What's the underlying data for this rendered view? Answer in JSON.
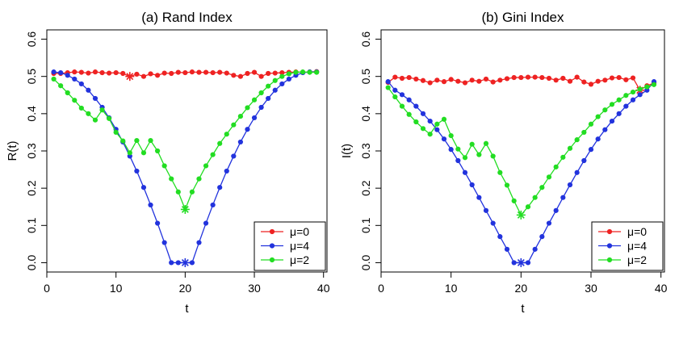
{
  "chart_data": [
    {
      "type": "line",
      "title": "(a) Rand Index",
      "xlabel": "t",
      "ylabel": "R(t)",
      "xlim": [
        0,
        40
      ],
      "ylim": [
        0.0,
        0.6
      ],
      "xticks": [
        "0",
        "10",
        "20",
        "30",
        "40"
      ],
      "yticks": [
        "0.0",
        "0.1",
        "0.2",
        "0.3",
        "0.4",
        "0.5",
        "0.6"
      ],
      "legend_position": "bottom-right",
      "x": [
        1,
        2,
        3,
        4,
        5,
        6,
        7,
        8,
        9,
        10,
        11,
        12,
        13,
        14,
        15,
        16,
        17,
        18,
        19,
        20,
        21,
        22,
        23,
        24,
        25,
        26,
        27,
        28,
        29,
        30,
        31,
        32,
        33,
        34,
        35,
        36,
        37,
        38,
        39
      ],
      "series": [
        {
          "name": "μ=0",
          "color": "#ee2222",
          "values": [
            0.508,
            0.508,
            0.51,
            0.512,
            0.511,
            0.509,
            0.512,
            0.51,
            0.509,
            0.51,
            0.508,
            0.5,
            0.506,
            0.5,
            0.507,
            0.503,
            0.509,
            0.508,
            0.511,
            0.51,
            0.512,
            0.511,
            0.511,
            0.51,
            0.511,
            0.509,
            0.503,
            0.5,
            0.508,
            0.511,
            0.5,
            0.508,
            0.509,
            0.51,
            0.511,
            0.512,
            0.511,
            0.512,
            0.513
          ],
          "star_index": 11
        },
        {
          "name": "μ=4",
          "color": "#2233dd",
          "values": [
            0.512,
            0.51,
            0.503,
            0.493,
            0.48,
            0.463,
            0.441,
            0.417,
            0.389,
            0.358,
            0.324,
            0.286,
            0.246,
            0.202,
            0.155,
            0.106,
            0.054,
            0.0,
            0.0,
            0.0,
            0.0,
            0.054,
            0.106,
            0.155,
            0.202,
            0.246,
            0.286,
            0.324,
            0.358,
            0.389,
            0.417,
            0.441,
            0.463,
            0.48,
            0.493,
            0.503,
            0.51,
            0.512,
            0.512
          ],
          "star_index": 19
        },
        {
          "name": "μ=2",
          "color": "#22dd22",
          "values": [
            0.493,
            0.475,
            0.456,
            0.436,
            0.415,
            0.4,
            0.383,
            0.41,
            0.387,
            0.35,
            0.327,
            0.295,
            0.328,
            0.295,
            0.328,
            0.3,
            0.26,
            0.225,
            0.19,
            0.143,
            0.19,
            0.225,
            0.26,
            0.29,
            0.32,
            0.345,
            0.37,
            0.393,
            0.416,
            0.437,
            0.456,
            0.474,
            0.489,
            0.5,
            0.507,
            0.511,
            0.512,
            0.511,
            0.511
          ],
          "star_index": 19
        }
      ]
    },
    {
      "type": "line",
      "title": "(b) Gini Index",
      "xlabel": "t",
      "ylabel": "I(t)",
      "xlim": [
        0,
        40
      ],
      "ylim": [
        0.0,
        0.6
      ],
      "xticks": [
        "0",
        "10",
        "20",
        "30",
        "40"
      ],
      "yticks": [
        "0.0",
        "0.1",
        "0.2",
        "0.3",
        "0.4",
        "0.5",
        "0.6"
      ],
      "legend_position": "bottom-right",
      "x": [
        1,
        2,
        3,
        4,
        5,
        6,
        7,
        8,
        9,
        10,
        11,
        12,
        13,
        14,
        15,
        16,
        17,
        18,
        19,
        20,
        21,
        22,
        23,
        24,
        25,
        26,
        27,
        28,
        29,
        30,
        31,
        32,
        33,
        34,
        35,
        36,
        37,
        38,
        39
      ],
      "series": [
        {
          "name": "μ=0",
          "color": "#ee2222",
          "values": [
            0.484,
            0.498,
            0.495,
            0.497,
            0.493,
            0.489,
            0.483,
            0.49,
            0.486,
            0.492,
            0.487,
            0.483,
            0.49,
            0.487,
            0.493,
            0.485,
            0.49,
            0.494,
            0.497,
            0.497,
            0.498,
            0.498,
            0.497,
            0.495,
            0.49,
            0.495,
            0.487,
            0.498,
            0.485,
            0.479,
            0.487,
            0.49,
            0.496,
            0.497,
            0.491,
            0.496,
            0.463,
            0.475,
            0.482
          ],
          "star_index": 36
        },
        {
          "name": "μ=4",
          "color": "#2233dd",
          "values": [
            0.486,
            0.463,
            0.451,
            0.437,
            0.42,
            0.4,
            0.38,
            0.357,
            0.332,
            0.304,
            0.274,
            0.242,
            0.209,
            0.175,
            0.14,
            0.106,
            0.07,
            0.036,
            0.0,
            0.0,
            0.0,
            0.036,
            0.07,
            0.106,
            0.14,
            0.175,
            0.209,
            0.242,
            0.274,
            0.304,
            0.332,
            0.357,
            0.38,
            0.4,
            0.42,
            0.437,
            0.451,
            0.463,
            0.486
          ],
          "star_index": 19
        },
        {
          "name": "μ=2",
          "color": "#22dd22",
          "values": [
            0.47,
            0.445,
            0.42,
            0.398,
            0.378,
            0.36,
            0.345,
            0.372,
            0.385,
            0.341,
            0.305,
            0.282,
            0.318,
            0.29,
            0.32,
            0.286,
            0.242,
            0.208,
            0.166,
            0.128,
            0.15,
            0.175,
            0.202,
            0.23,
            0.257,
            0.283,
            0.307,
            0.33,
            0.35,
            0.372,
            0.392,
            0.41,
            0.425,
            0.437,
            0.449,
            0.458,
            0.466,
            0.472,
            0.478
          ],
          "star_index": 19
        }
      ]
    }
  ]
}
